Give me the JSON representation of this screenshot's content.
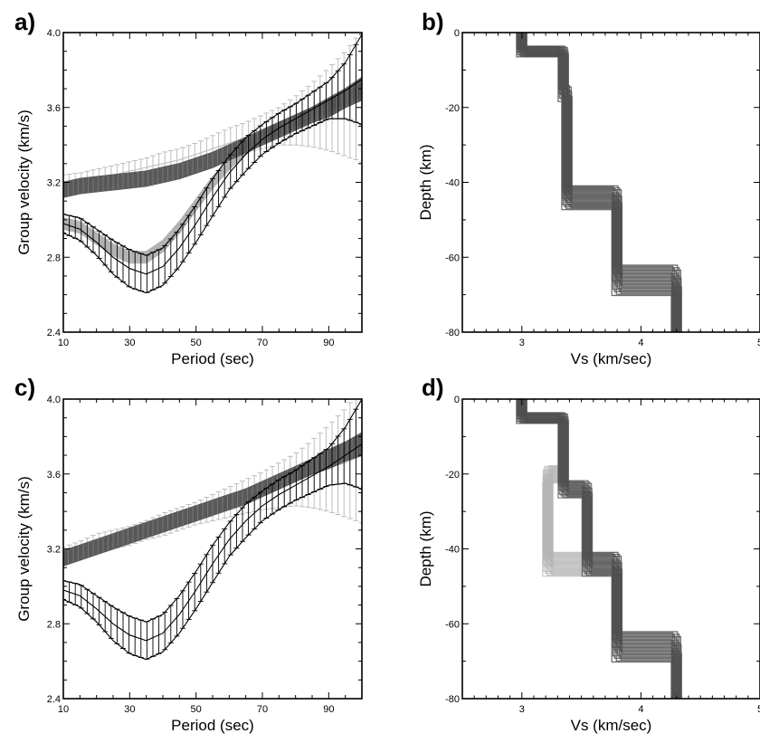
{
  "colors": {
    "dark_gray": "#4d4d4d",
    "light_gray": "#b3b3b3",
    "black": "#000000"
  },
  "chart_data": [
    {
      "panel": "a)",
      "type": "line",
      "xlabel": "Period (sec)",
      "ylabel": "Group velocity (km/s)",
      "xlim": [
        10,
        100
      ],
      "ylim": [
        2.4,
        4.0
      ],
      "xticks": [
        10,
        30,
        50,
        70,
        90
      ],
      "yticks": [
        2.4,
        2.8,
        3.2,
        3.6,
        4.0
      ],
      "xtick_labels": [
        "10",
        "30",
        "50",
        "70",
        "90"
      ],
      "ytick_labels": [
        "2.4",
        "2.8",
        "3.2",
        "3.6",
        "4.0"
      ],
      "x": [
        10,
        15,
        20,
        25,
        30,
        35,
        40,
        45,
        50,
        55,
        60,
        65,
        70,
        75,
        80,
        85,
        90,
        95,
        100
      ],
      "series": [
        {
          "role": "observed_upper",
          "style": "errorbars_light",
          "color": "#b3b3b3",
          "values": [
            3.2,
            3.21,
            3.22,
            3.24,
            3.26,
            3.28,
            3.3,
            3.32,
            3.35,
            3.38,
            3.41,
            3.44,
            3.47,
            3.5,
            3.53,
            3.56,
            3.59,
            3.62,
            3.66
          ],
          "errors": [
            0.04,
            0.04,
            0.05,
            0.05,
            0.05,
            0.05,
            0.06,
            0.06,
            0.06,
            0.07,
            0.08,
            0.08,
            0.09,
            0.1,
            0.13,
            0.17,
            0.22,
            0.28,
            0.35
          ]
        },
        {
          "role": "model_upper",
          "style": "band_dark",
          "color": "#4d4d4d",
          "values": [
            3.16,
            3.18,
            3.19,
            3.2,
            3.21,
            3.22,
            3.24,
            3.26,
            3.29,
            3.32,
            3.36,
            3.4,
            3.44,
            3.48,
            3.52,
            3.56,
            3.6,
            3.65,
            3.7
          ],
          "band_width": [
            0.04,
            0.04,
            0.04,
            0.04,
            0.04,
            0.04,
            0.04,
            0.04,
            0.04,
            0.04,
            0.04,
            0.04,
            0.04,
            0.04,
            0.04,
            0.04,
            0.05,
            0.05,
            0.06
          ]
        },
        {
          "role": "model_lower",
          "style": "band_light",
          "color": "#b3b3b3",
          "values": [
            2.98,
            2.96,
            2.9,
            2.84,
            2.8,
            2.8,
            2.86,
            2.96,
            3.08,
            3.2,
            3.3,
            3.38,
            3.44,
            3.49,
            3.53,
            3.57,
            3.61,
            3.65,
            3.69
          ],
          "band_width": [
            0.03,
            0.03,
            0.03,
            0.03,
            0.03,
            0.03,
            0.03,
            0.03,
            0.03,
            0.03,
            0.03,
            0.03,
            0.03,
            0.03,
            0.03,
            0.03,
            0.03,
            0.03,
            0.03
          ]
        },
        {
          "role": "observed_lower",
          "style": "errorbars_black",
          "color": "#000000",
          "values": [
            2.98,
            2.95,
            2.88,
            2.8,
            2.74,
            2.71,
            2.75,
            2.85,
            2.98,
            3.12,
            3.25,
            3.35,
            3.43,
            3.49,
            3.54,
            3.59,
            3.64,
            3.69,
            3.75
          ],
          "errors": [
            0.05,
            0.06,
            0.07,
            0.09,
            0.1,
            0.1,
            0.1,
            0.1,
            0.1,
            0.1,
            0.09,
            0.09,
            0.08,
            0.08,
            0.08,
            0.09,
            0.1,
            0.15,
            0.24
          ]
        }
      ]
    },
    {
      "panel": "b)",
      "type": "line",
      "xlabel": "Vs (km/sec)",
      "ylabel": "Depth (km)",
      "xlim": [
        2.5,
        5.0
      ],
      "ylim": [
        -80,
        0
      ],
      "xticks": [
        3,
        4,
        5
      ],
      "yticks": [
        0,
        -20,
        -40,
        -60,
        -80
      ],
      "xtick_labels": [
        "3",
        "4",
        "5"
      ],
      "ytick_labels": [
        "0",
        "-20",
        "-40",
        "-60",
        "-80"
      ],
      "profiles": [
        {
          "role": "light",
          "color": "#b3b3b3",
          "vs": [
            3.0,
            3.35,
            3.38,
            3.8,
            4.3
          ],
          "boundaries": [
            -5,
            -16,
            -44,
            -66,
            -80
          ]
        },
        {
          "role": "dark",
          "color": "#4d4d4d",
          "vs": [
            3.0,
            3.35,
            3.38,
            3.8,
            4.3
          ],
          "boundaries": [
            -5,
            -16,
            -44,
            -66,
            -80
          ]
        }
      ]
    },
    {
      "panel": "c)",
      "type": "line",
      "xlabel": "Period (sec)",
      "ylabel": "Group velocity (km/s)",
      "xlim": [
        10,
        100
      ],
      "ylim": [
        2.4,
        4.0
      ],
      "xticks": [
        10,
        30,
        50,
        70,
        90
      ],
      "yticks": [
        2.4,
        2.8,
        3.2,
        3.6,
        4.0
      ],
      "xtick_labels": [
        "10",
        "30",
        "50",
        "70",
        "90"
      ],
      "ytick_labels": [
        "2.4",
        "2.8",
        "3.2",
        "3.6",
        "4.0"
      ],
      "x": [
        10,
        15,
        20,
        25,
        30,
        35,
        40,
        45,
        50,
        55,
        60,
        65,
        70,
        75,
        80,
        85,
        90,
        95,
        100
      ],
      "series": [
        {
          "role": "observed_upper",
          "style": "errorbars_light",
          "color": "#b3b3b3",
          "values": [
            3.17,
            3.2,
            3.23,
            3.25,
            3.27,
            3.3,
            3.33,
            3.36,
            3.39,
            3.42,
            3.45,
            3.48,
            3.51,
            3.54,
            3.57,
            3.6,
            3.63,
            3.66,
            3.7
          ],
          "errors": [
            0.04,
            0.04,
            0.05,
            0.05,
            0.05,
            0.05,
            0.06,
            0.06,
            0.06,
            0.07,
            0.08,
            0.09,
            0.1,
            0.12,
            0.14,
            0.18,
            0.23,
            0.29,
            0.36
          ]
        },
        {
          "role": "model_upper",
          "style": "band_dark",
          "color": "#4d4d4d",
          "values": [
            3.15,
            3.18,
            3.21,
            3.24,
            3.27,
            3.3,
            3.33,
            3.36,
            3.39,
            3.42,
            3.45,
            3.48,
            3.52,
            3.56,
            3.6,
            3.64,
            3.68,
            3.72,
            3.76
          ],
          "band_width": [
            0.04,
            0.04,
            0.04,
            0.04,
            0.04,
            0.04,
            0.04,
            0.04,
            0.04,
            0.04,
            0.04,
            0.04,
            0.04,
            0.04,
            0.04,
            0.04,
            0.05,
            0.05,
            0.06
          ]
        },
        {
          "role": "observed_lower",
          "style": "errorbars_black",
          "color": "#000000",
          "values": [
            2.98,
            2.95,
            2.88,
            2.8,
            2.74,
            2.71,
            2.75,
            2.85,
            2.98,
            3.12,
            3.25,
            3.35,
            3.43,
            3.49,
            3.54,
            3.59,
            3.64,
            3.7,
            3.76
          ],
          "errors": [
            0.05,
            0.06,
            0.07,
            0.09,
            0.1,
            0.1,
            0.1,
            0.1,
            0.1,
            0.1,
            0.09,
            0.09,
            0.08,
            0.08,
            0.08,
            0.09,
            0.1,
            0.15,
            0.24
          ]
        }
      ]
    },
    {
      "panel": "d)",
      "type": "line",
      "xlabel": "Vs (km/sec)",
      "ylabel": "Depth (km)",
      "xlim": [
        2.5,
        5.0
      ],
      "ylim": [
        -80,
        0
      ],
      "xticks": [
        3,
        4,
        5
      ],
      "yticks": [
        0,
        -20,
        -40,
        -60,
        -80
      ],
      "xtick_labels": [
        "3",
        "4",
        "5"
      ],
      "ytick_labels": [
        "0",
        "-20",
        "-40",
        "-60",
        "-80"
      ],
      "profiles": [
        {
          "role": "light",
          "color": "#b3b3b3",
          "vs": [
            3.0,
            3.35,
            3.22,
            3.8,
            4.3
          ],
          "boundaries": [
            -5,
            -20,
            -44,
            -66,
            -80
          ]
        },
        {
          "role": "dark",
          "color": "#4d4d4d",
          "vs": [
            3.0,
            3.35,
            3.55,
            3.8,
            4.3
          ],
          "boundaries": [
            -5,
            -24,
            -44,
            -66,
            -80
          ]
        }
      ]
    }
  ]
}
